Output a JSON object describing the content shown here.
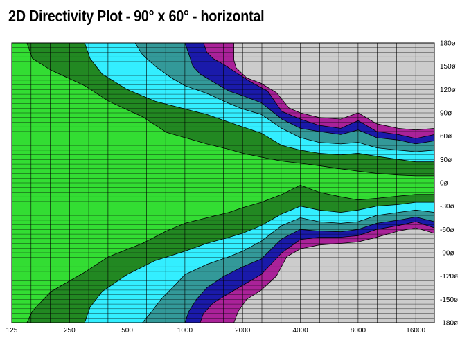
{
  "chart_data": {
    "type": "heatmap",
    "title": "2D Directivity Plot - 90° x 60° - horizontal",
    "xlabel": "",
    "ylabel": "",
    "x_scale": "log",
    "x_unit": "Hz",
    "xlim": [
      125,
      20000
    ],
    "ylim": [
      -180,
      180
    ],
    "y_unit": "degrees",
    "x_ticks": [
      125,
      250,
      500,
      1000,
      2000,
      4000,
      8000,
      16000
    ],
    "x_tick_labels": [
      "125",
      "250",
      "500",
      "1000",
      "2000",
      "4000",
      "8000",
      "16000"
    ],
    "y_ticks": [
      180,
      150,
      120,
      90,
      60,
      30,
      0,
      -30,
      -60,
      -90,
      -120,
      -150,
      -180
    ],
    "y_tick_labels": [
      "180ø",
      "150ø",
      "120ø",
      "90ø",
      "60ø",
      "30ø",
      "0ø",
      "-30ø",
      "-60ø",
      "-90ø",
      "-120ø",
      "-150ø",
      "-180ø"
    ],
    "grid": true,
    "legend": "none",
    "level_colors": [
      "#33dd33",
      "#228822",
      "#33eeff",
      "#339999",
      "#1a1aaa",
      "#aa2299",
      "#cccccc"
    ],
    "contour_bands": [
      {
        "color": "#228822",
        "upper": [
          [
            150,
            180
          ],
          [
            160,
            160
          ],
          [
            200,
            145
          ],
          [
            300,
            125
          ],
          [
            400,
            105
          ],
          [
            600,
            85
          ],
          [
            800,
            65
          ],
          [
            1000,
            58
          ],
          [
            1300,
            50
          ],
          [
            1700,
            43
          ],
          [
            2000,
            38
          ],
          [
            2500,
            33
          ],
          [
            3200,
            28
          ],
          [
            4000,
            25
          ],
          [
            5000,
            22
          ],
          [
            6500,
            18
          ],
          [
            8000,
            15
          ],
          [
            10000,
            12
          ],
          [
            13000,
            10
          ],
          [
            16000,
            9
          ],
          [
            20000,
            9
          ]
        ],
        "lower": [
          [
            150,
            -180
          ],
          [
            160,
            -165
          ],
          [
            200,
            -140
          ],
          [
            300,
            -115
          ],
          [
            400,
            -95
          ],
          [
            600,
            -78
          ],
          [
            800,
            -62
          ],
          [
            1000,
            -52
          ],
          [
            1300,
            -45
          ],
          [
            1700,
            -38
          ],
          [
            2000,
            -32
          ],
          [
            2500,
            -25
          ],
          [
            3200,
            -15
          ],
          [
            4000,
            -3
          ],
          [
            5000,
            -12
          ],
          [
            6500,
            -18
          ],
          [
            8000,
            -22
          ],
          [
            10000,
            -20
          ],
          [
            13000,
            -17
          ],
          [
            16000,
            -15
          ],
          [
            20000,
            -15
          ]
        ]
      },
      {
        "color": "#33eeff",
        "upper": [
          [
            300,
            180
          ],
          [
            320,
            160
          ],
          [
            370,
            140
          ],
          [
            500,
            120
          ],
          [
            700,
            105
          ],
          [
            1000,
            95
          ],
          [
            1300,
            88
          ],
          [
            1700,
            78
          ],
          [
            2000,
            72
          ],
          [
            2500,
            64
          ],
          [
            3200,
            48
          ],
          [
            4000,
            42
          ],
          [
            5000,
            38
          ],
          [
            6500,
            36
          ],
          [
            8000,
            38
          ],
          [
            10000,
            34
          ],
          [
            13000,
            30
          ],
          [
            16000,
            27
          ],
          [
            20000,
            27
          ]
        ],
        "lower": [
          [
            300,
            -180
          ],
          [
            320,
            -160
          ],
          [
            370,
            -140
          ],
          [
            500,
            -118
          ],
          [
            700,
            -100
          ],
          [
            1000,
            -88
          ],
          [
            1300,
            -78
          ],
          [
            1700,
            -70
          ],
          [
            2000,
            -65
          ],
          [
            2500,
            -55
          ],
          [
            3200,
            -40
          ],
          [
            4000,
            -30
          ],
          [
            5000,
            -35
          ],
          [
            6500,
            -38
          ],
          [
            8000,
            -35
          ],
          [
            10000,
            -30
          ],
          [
            13000,
            -28
          ],
          [
            16000,
            -25
          ],
          [
            20000,
            -25
          ]
        ]
      },
      {
        "color": "#339999",
        "upper": [
          [
            550,
            180
          ],
          [
            600,
            165
          ],
          [
            700,
            150
          ],
          [
            850,
            135
          ],
          [
            1000,
            125
          ],
          [
            1300,
            115
          ],
          [
            1700,
            102
          ],
          [
            2000,
            95
          ],
          [
            2500,
            88
          ],
          [
            3200,
            70
          ],
          [
            4000,
            58
          ],
          [
            5000,
            52
          ],
          [
            6500,
            50
          ],
          [
            8000,
            52
          ],
          [
            10000,
            45
          ],
          [
            13000,
            42
          ],
          [
            16000,
            40
          ],
          [
            20000,
            42
          ]
        ],
        "lower": [
          [
            600,
            -180
          ],
          [
            650,
            -170
          ],
          [
            750,
            -150
          ],
          [
            900,
            -130
          ],
          [
            1000,
            -118
          ],
          [
            1300,
            -105
          ],
          [
            1700,
            -95
          ],
          [
            2000,
            -88
          ],
          [
            2500,
            -75
          ],
          [
            3200,
            -55
          ],
          [
            4000,
            -45
          ],
          [
            5000,
            -50
          ],
          [
            6500,
            -52
          ],
          [
            8000,
            -50
          ],
          [
            10000,
            -42
          ],
          [
            13000,
            -38
          ],
          [
            16000,
            -35
          ],
          [
            20000,
            -38
          ]
        ]
      },
      {
        "color": "#1a1aaa",
        "upper": [
          [
            1000,
            180
          ],
          [
            1050,
            165
          ],
          [
            1100,
            150
          ],
          [
            1200,
            140
          ],
          [
            1400,
            130
          ],
          [
            1700,
            118
          ],
          [
            2000,
            112
          ],
          [
            2500,
            103
          ],
          [
            3200,
            82
          ],
          [
            4000,
            70
          ],
          [
            5000,
            66
          ],
          [
            6500,
            62
          ],
          [
            8000,
            68
          ],
          [
            10000,
            58
          ],
          [
            13000,
            55
          ],
          [
            16000,
            50
          ],
          [
            20000,
            54
          ]
        ],
        "lower": [
          [
            1000,
            -180
          ],
          [
            1050,
            -165
          ],
          [
            1150,
            -150
          ],
          [
            1300,
            -135
          ],
          [
            1600,
            -120
          ],
          [
            2000,
            -108
          ],
          [
            2500,
            -98
          ],
          [
            3200,
            -72
          ],
          [
            4000,
            -60
          ],
          [
            5000,
            -62
          ],
          [
            6500,
            -63
          ],
          [
            8000,
            -60
          ],
          [
            10000,
            -52
          ],
          [
            13000,
            -48
          ],
          [
            16000,
            -44
          ],
          [
            20000,
            -50
          ]
        ]
      },
      {
        "color": "#aa2299",
        "upper": [
          [
            1250,
            180
          ],
          [
            1300,
            168
          ],
          [
            1400,
            160
          ],
          [
            1600,
            152
          ],
          [
            1900,
            140
          ],
          [
            2200,
            130
          ],
          [
            2700,
            118
          ],
          [
            3200,
            92
          ],
          [
            4000,
            82
          ],
          [
            5000,
            74
          ],
          [
            6500,
            70
          ],
          [
            8000,
            80
          ],
          [
            10000,
            66
          ],
          [
            13000,
            62
          ],
          [
            16000,
            57
          ],
          [
            20000,
            62
          ]
        ],
        "lower": [
          [
            1200,
            -180
          ],
          [
            1250,
            -168
          ],
          [
            1400,
            -155
          ],
          [
            1700,
            -142
          ],
          [
            2000,
            -132
          ],
          [
            2500,
            -118
          ],
          [
            3200,
            -90
          ],
          [
            4000,
            -73
          ],
          [
            5000,
            -70
          ],
          [
            6500,
            -70
          ],
          [
            8000,
            -68
          ],
          [
            10000,
            -60
          ],
          [
            13000,
            -55
          ],
          [
            16000,
            -50
          ],
          [
            20000,
            -58
          ]
        ]
      },
      {
        "color": "#cccccc",
        "upper": [
          [
            1800,
            180
          ],
          [
            1800,
            158
          ],
          [
            1850,
            148
          ],
          [
            2100,
            135
          ],
          [
            2500,
            128
          ],
          [
            3000,
            116
          ],
          [
            3500,
            96
          ],
          [
            4000,
            90
          ],
          [
            5000,
            84
          ],
          [
            6500,
            82
          ],
          [
            8000,
            90
          ],
          [
            10000,
            76
          ],
          [
            13000,
            70
          ],
          [
            16000,
            68
          ],
          [
            20000,
            70
          ]
        ],
        "lower": [
          [
            1800,
            -180
          ],
          [
            1900,
            -165
          ],
          [
            2100,
            -150
          ],
          [
            2500,
            -138
          ],
          [
            3000,
            -120
          ],
          [
            3400,
            -95
          ],
          [
            4000,
            -85
          ],
          [
            5000,
            -80
          ],
          [
            6500,
            -78
          ],
          [
            8000,
            -76
          ],
          [
            10000,
            -70
          ],
          [
            13000,
            -62
          ],
          [
            16000,
            -58
          ],
          [
            20000,
            -65
          ]
        ]
      }
    ]
  }
}
